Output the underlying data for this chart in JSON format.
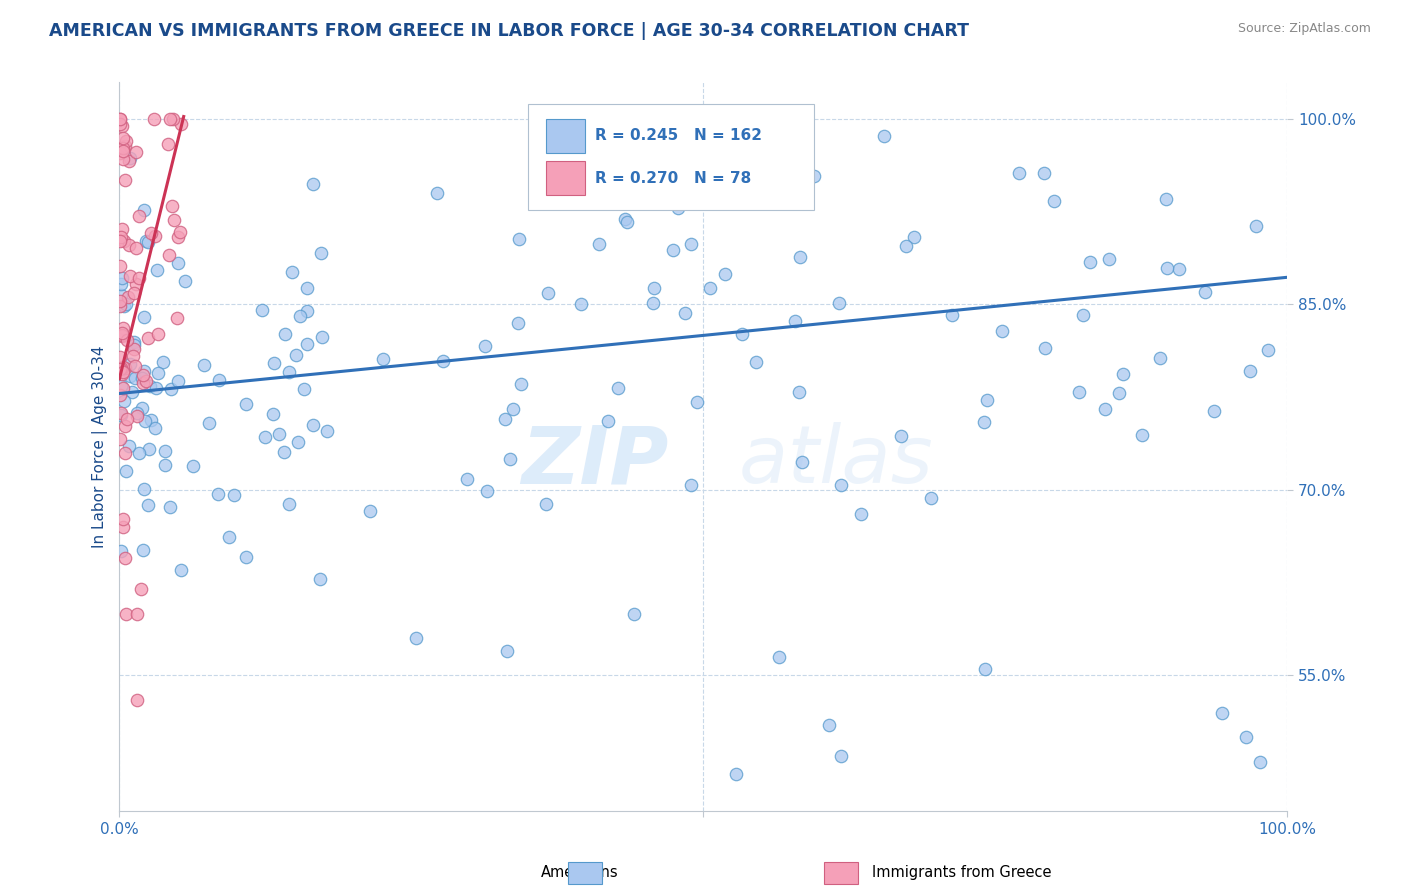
{
  "title": "AMERICAN VS IMMIGRANTS FROM GREECE IN LABOR FORCE | AGE 30-34 CORRELATION CHART",
  "source": "Source: ZipAtlas.com",
  "ylabel": "In Labor Force | Age 30-34",
  "xlim": [
    0,
    1
  ],
  "ylim": [
    0.44,
    1.03
  ],
  "ytick_positions": [
    0.55,
    0.7,
    0.85,
    1.0
  ],
  "ytick_labels": [
    "55.0%",
    "70.0%",
    "85.0%",
    "100.0%"
  ],
  "watermark": "ZIPAtlas",
  "blue_color": "#aac8f0",
  "pink_color": "#f5a0b8",
  "blue_edge": "#5599cc",
  "pink_edge": "#d06080",
  "trend_blue": "#3070b8",
  "trend_pink": "#cc3355",
  "blue_R": 0.245,
  "blue_N": 162,
  "pink_R": 0.27,
  "pink_N": 78,
  "blue_trend_x": [
    0.0,
    1.0
  ],
  "blue_trend_y": [
    0.778,
    0.872
  ],
  "pink_trend_x": [
    0.0,
    0.055
  ],
  "pink_trend_y": [
    0.79,
    1.002
  ],
  "title_color": "#1a4a8a",
  "axis_label_color": "#1a4a8a",
  "tick_color": "#3070b8",
  "background_color": "#ffffff",
  "grid_color": "#c8d8e8",
  "title_fontsize": 12.5,
  "axis_label_fontsize": 11
}
